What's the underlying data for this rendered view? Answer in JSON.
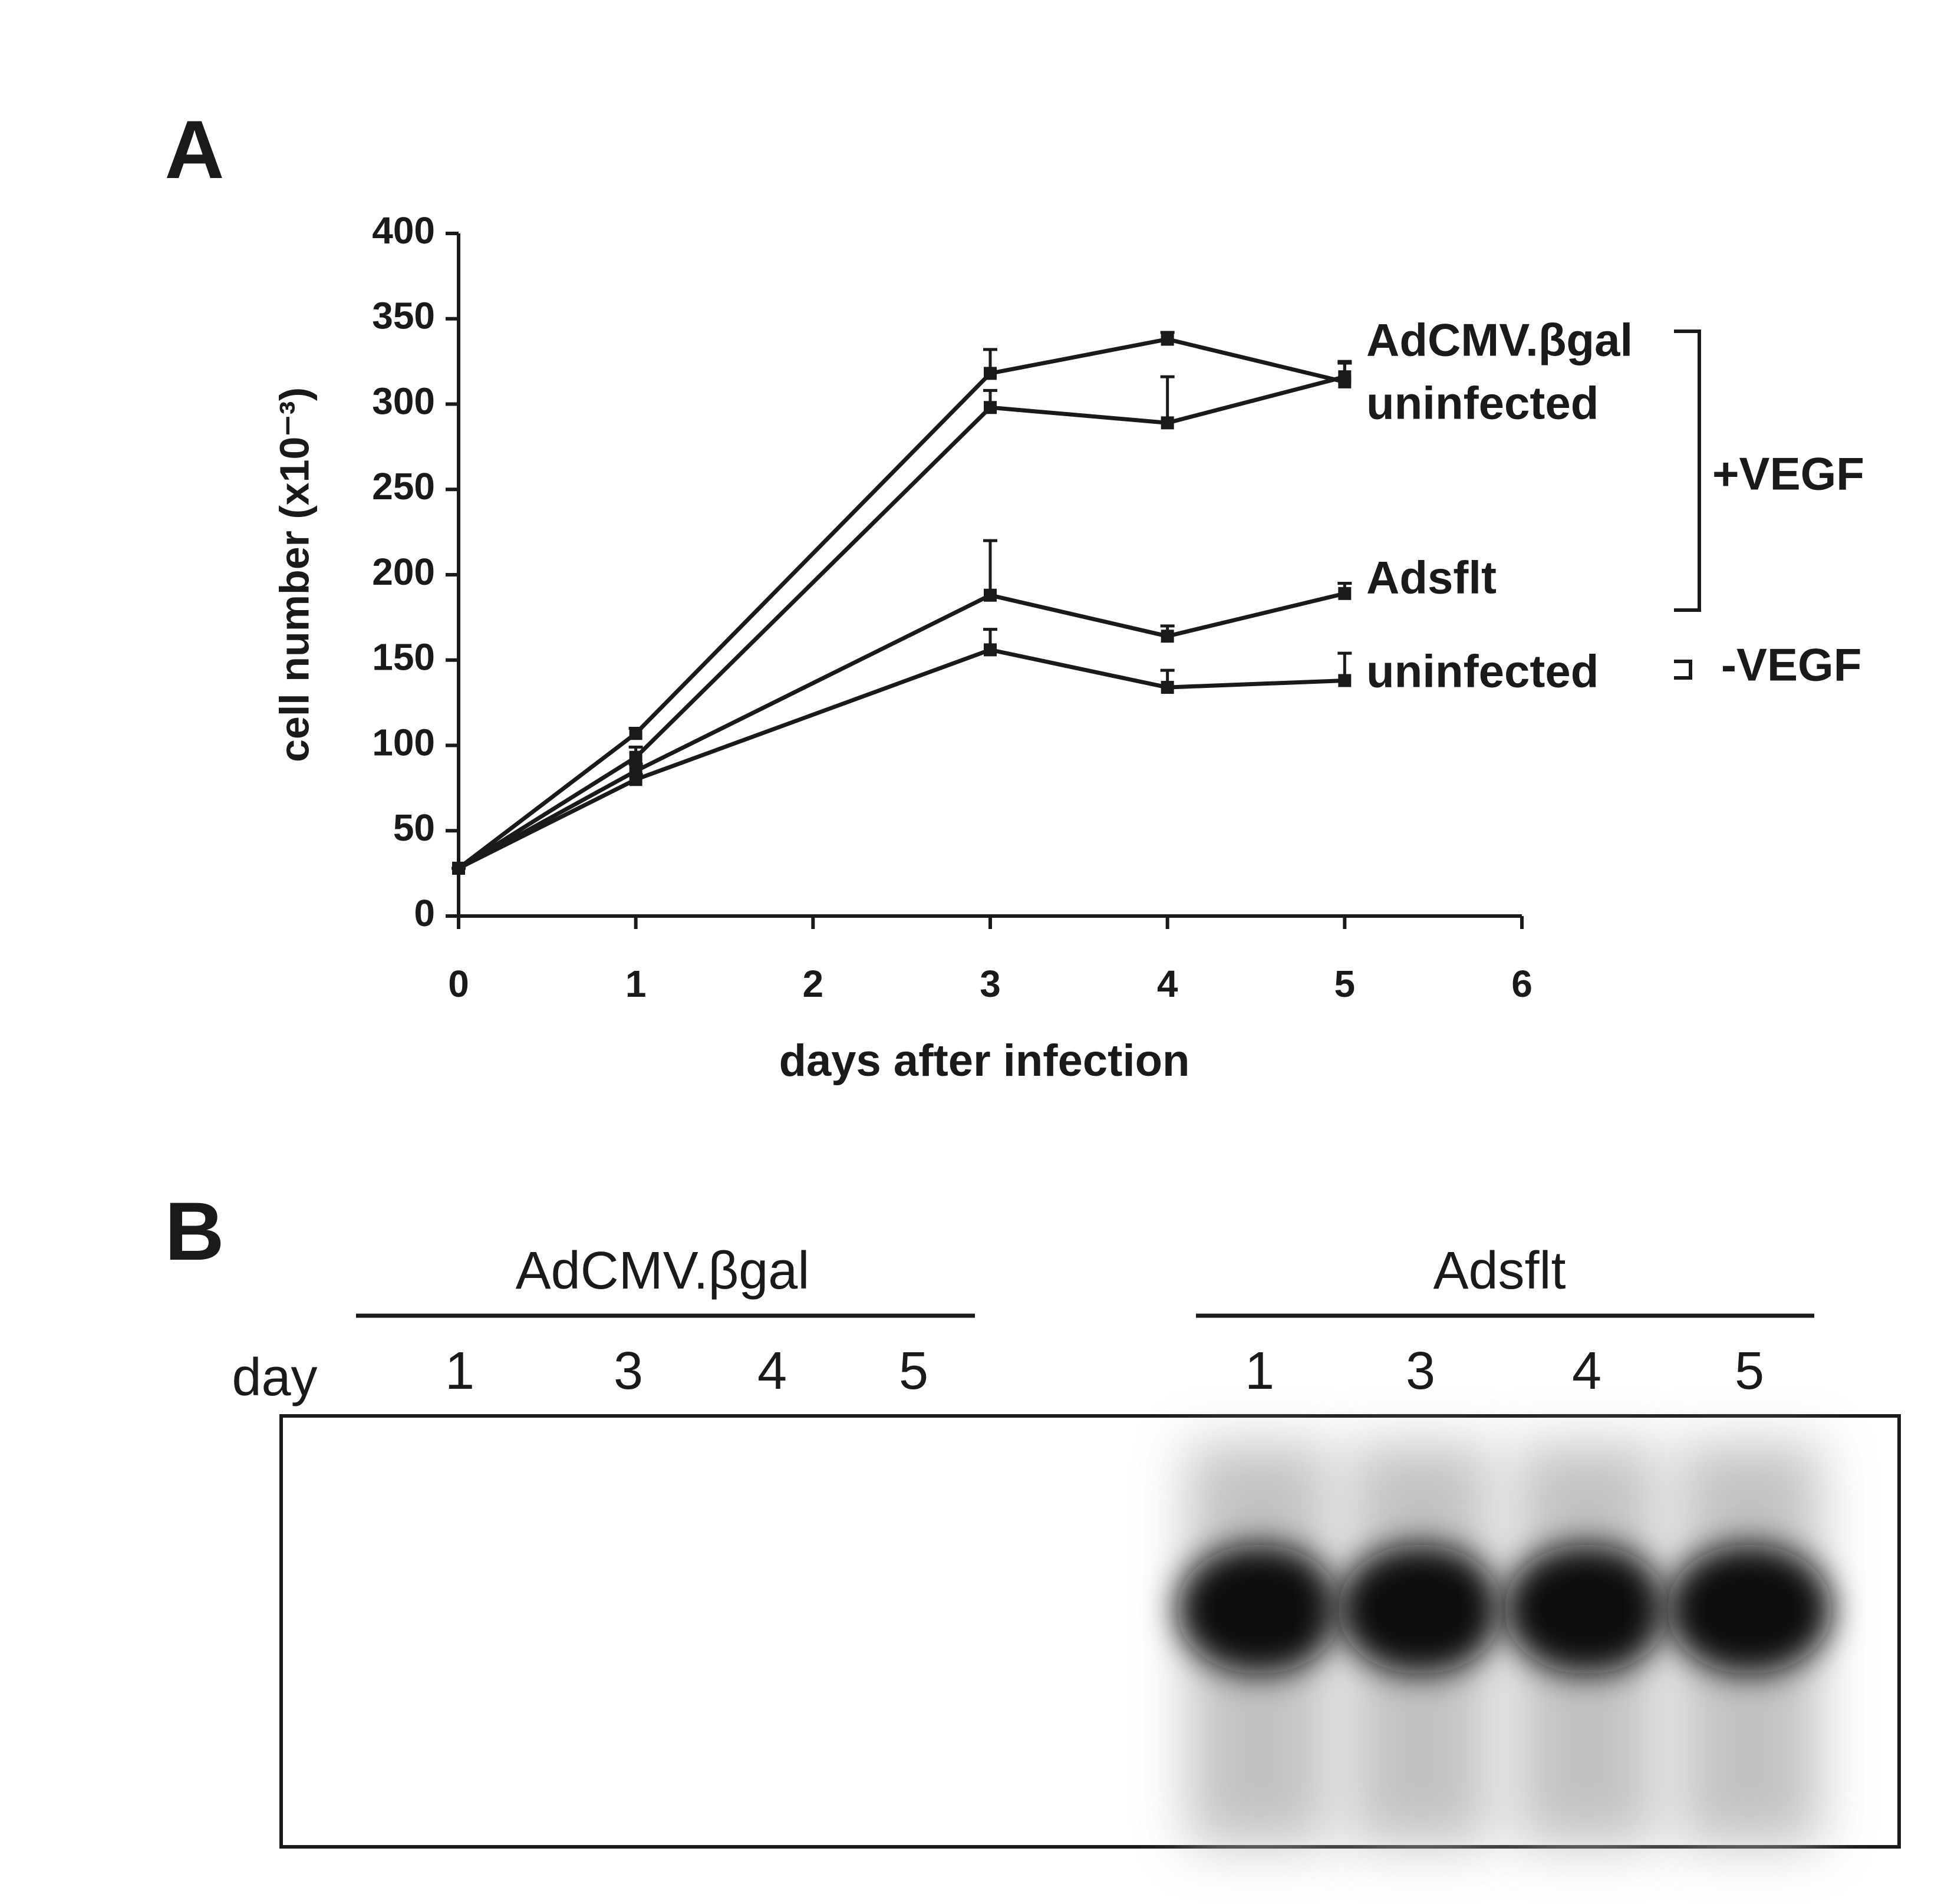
{
  "chart_data": {
    "type": "line",
    "panel_label": "A",
    "xlabel": "days after infection",
    "ylabel": "cell number (x10⁻³)",
    "x": [
      0,
      1,
      3,
      4,
      5
    ],
    "xlim": [
      0,
      6
    ],
    "xticks": [
      0,
      1,
      2,
      3,
      4,
      5,
      6
    ],
    "ylim": [
      0,
      400
    ],
    "yticks": [
      0,
      50,
      100,
      150,
      200,
      250,
      300,
      350,
      400
    ],
    "color": "#1a1a1a",
    "series": [
      {
        "name": "AdCMV.βgal",
        "values": [
          28,
          107,
          318,
          338,
          313
        ],
        "errors": [
          0,
          3,
          14,
          4,
          12
        ]
      },
      {
        "name": "uninfected",
        "values": [
          28,
          93,
          298,
          289,
          316
        ],
        "errors": [
          0,
          6,
          10,
          27,
          8
        ]
      },
      {
        "name": "Adsflt",
        "values": [
          28,
          85,
          188,
          164,
          189
        ],
        "errors": [
          0,
          4,
          32,
          6,
          6
        ]
      },
      {
        "name": "uninfected",
        "values": [
          28,
          80,
          156,
          134,
          138
        ],
        "errors": [
          0,
          3,
          12,
          10,
          16
        ]
      }
    ],
    "groups": [
      "+VEGF",
      "-VEGF"
    ]
  },
  "panel_b": {
    "panel_label": "B",
    "row_label": "day",
    "groups": [
      {
        "title": "AdCMV.βgal",
        "lanes": [
          "1",
          "3",
          "4",
          "5"
        ]
      },
      {
        "title": "Adsflt",
        "lanes": [
          "1",
          "3",
          "4",
          "5"
        ]
      }
    ]
  }
}
